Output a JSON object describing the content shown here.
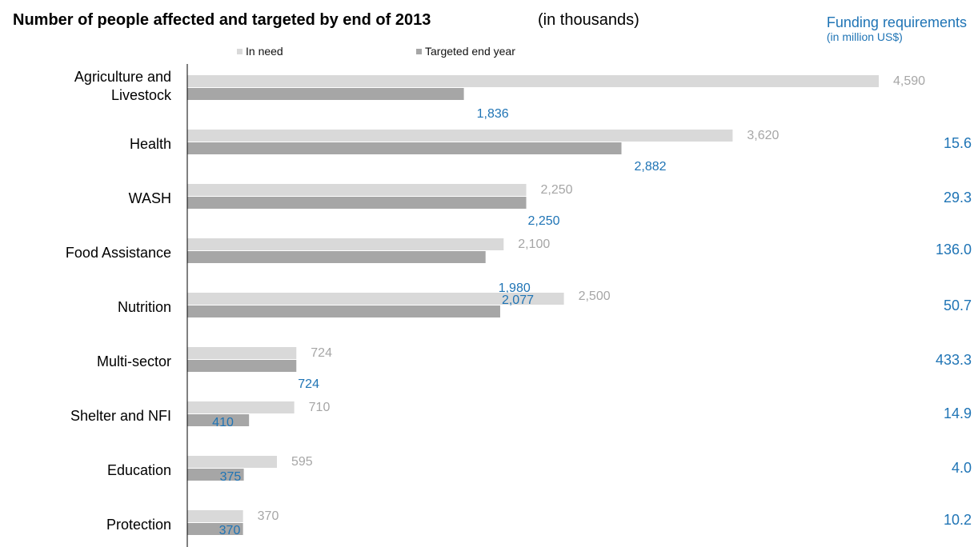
{
  "title": "Number of people affected and targeted by end of 2013",
  "title_unit": "(in thousands)",
  "funding_header": {
    "line1": "Funding requirements",
    "line2": "(in million US$)"
  },
  "colors": {
    "in_need": "#d9d9d9",
    "targeted": "#a6a6a6",
    "in_need_label": "#a6a6a6",
    "targeted_label": "#1f74b5",
    "funding": "#1f74b5",
    "axis": "#000000",
    "category_text": "#000000"
  },
  "chart_data": {
    "type": "bar",
    "orientation": "horizontal",
    "categories": [
      "Agriculture and Livestock",
      "Health",
      "WASH",
      "Food Assistance",
      "Nutrition",
      "Multi-sector",
      "Shelter and NFI",
      "Education",
      "Protection"
    ],
    "series": [
      {
        "name": "In need",
        "values": [
          4590,
          3620,
          2250,
          2100,
          2500,
          724,
          710,
          595,
          370
        ]
      },
      {
        "name": "Targeted end year",
        "values": [
          1836,
          2882,
          2250,
          1980,
          2077,
          724,
          410,
          375,
          370
        ]
      }
    ],
    "data_labels": {
      "In need": [
        "4,590",
        "3,620",
        "2,250",
        "2,100",
        "2,500",
        "724",
        "710",
        "595",
        "370"
      ],
      "Targeted end year": [
        "1,836",
        "2,882",
        "2,250",
        "1,980",
        "2,077",
        "724",
        "410",
        "375",
        "370"
      ]
    },
    "funding_requirements": [
      "",
      "15.6",
      "29.3",
      "136.0",
      "50.7",
      "433.3",
      "14.9",
      "4.0",
      "10.2"
    ],
    "xlim": [
      0,
      5200
    ],
    "legend_position": "top",
    "grid": false
  }
}
